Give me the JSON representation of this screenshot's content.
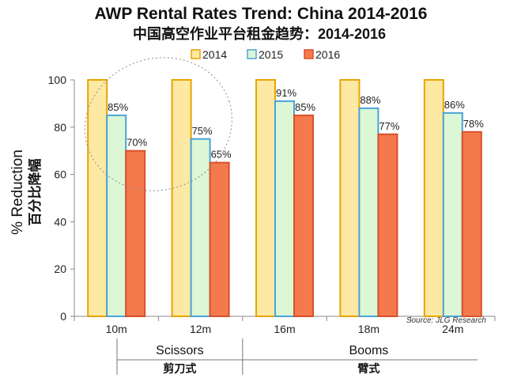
{
  "chart_data": {
    "type": "bar",
    "title": "AWP Rental Rates Trend: China  2014-2016",
    "subtitle": "中国高空作业平台租金趋势：2014-2016",
    "ylabel": "% Reduction",
    "ylabel_cn": "百分比降幅",
    "xlabel": "",
    "ylim": [
      0,
      100
    ],
    "yticks": [
      0,
      20,
      40,
      60,
      80,
      100
    ],
    "grid": false,
    "legend_position": "top",
    "categories": [
      "10m",
      "12m",
      "16m",
      "18m",
      "24m"
    ],
    "series": [
      {
        "name": "2014",
        "values": [
          100,
          100,
          100,
          100,
          100
        ],
        "labels": [
          "",
          "",
          "",
          "",
          ""
        ],
        "fill": "#fde9a3",
        "stroke": "#e8a400"
      },
      {
        "name": "2015",
        "values": [
          85,
          75,
          91,
          88,
          86
        ],
        "labels": [
          "85%",
          "75%",
          "91%",
          "88%",
          "86%"
        ],
        "fill": "#dcf7d6",
        "stroke": "#4aa3d8"
      },
      {
        "name": "2016",
        "values": [
          70,
          65,
          85,
          77,
          78
        ],
        "labels": [
          "70%",
          "65%",
          "85%",
          "77%",
          "78%"
        ],
        "fill": "#f47a4e",
        "stroke": "#d8502a"
      }
    ],
    "groups": [
      {
        "label": "Scissors",
        "label_cn": "剪刀式",
        "categories": [
          "10m",
          "12m"
        ]
      },
      {
        "label": "Booms",
        "label_cn": "臂式",
        "categories": [
          "16m",
          "18m",
          "24m"
        ]
      }
    ],
    "annotation": {
      "text": "Source: JLG Research",
      "position": "bottom-right"
    },
    "highlight": {
      "shape": "dashed-ellipse",
      "around": [
        "10m",
        "12m"
      ]
    }
  }
}
